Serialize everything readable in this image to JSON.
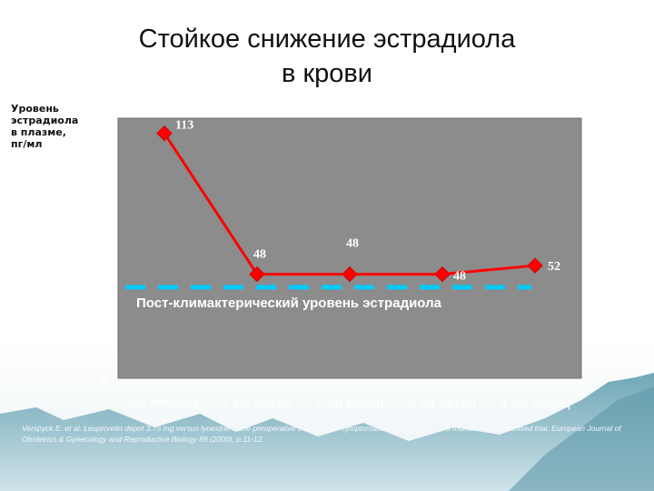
{
  "title_line1": "Стойкое снижение эстрадиола",
  "title_line2": "в крови",
  "y_axis_label": "Уровень эстрадиола в плазме, пг/мл",
  "citation": "Verspyck E. et al. Leuprorelin depot 3.75 mg versus lynestrel in the preoperative treatment of symptomatic uterine myomas: a multicentre randomised trial. European Journal of Obstetrics & Gynecology and Reproductive Biology 89 (2000), p.11-12.",
  "colors": {
    "plot_bg": "#8c8c8c",
    "series": "#ff0000",
    "reference_line": "#00ccff",
    "axis_text": "#ffffff",
    "label_text": "#ffffff"
  },
  "chart_data": {
    "type": "line",
    "categories": [
      "До лечения",
      "1-ый месяц",
      "2-ой месяц",
      "3-ий месяц",
      "4-ый месяц"
    ],
    "series": [
      {
        "values": [
          113,
          48,
          48,
          48,
          52
        ],
        "data_labels": [
          "113",
          "48",
          "48",
          "48",
          "52"
        ]
      }
    ],
    "reference_line": {
      "value": 42,
      "label": "Пост-климактерический уровень эстрадиола",
      "style": "dashed"
    },
    "ylim": [
      0,
      120
    ],
    "yticks": [
      0,
      20,
      40,
      60,
      80,
      100,
      120
    ],
    "grid": false,
    "legend": "none"
  }
}
